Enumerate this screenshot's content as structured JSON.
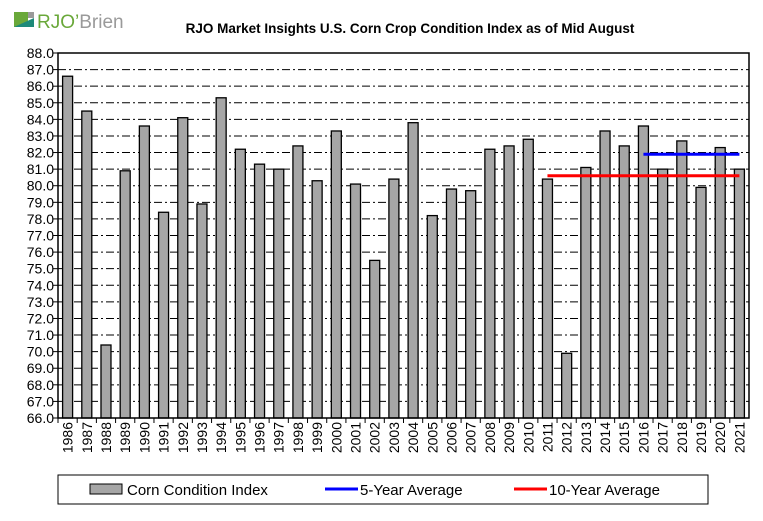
{
  "logo": {
    "text": "RJO'Brien",
    "colors": {
      "green": "#6aa83a",
      "teal": "#1d8a7a",
      "gray": "#9a9a9a"
    }
  },
  "chart_data": {
    "type": "bar",
    "title": "RJO Market Insights U.S. Corn Crop Condition Index as of Mid August",
    "xlabel": "",
    "ylabel": "",
    "ylim": [
      66,
      88
    ],
    "ytick_step": 1,
    "grid": true,
    "legend_position": "bottom",
    "categories": [
      "1986",
      "1987",
      "1988",
      "1989",
      "1990",
      "1991",
      "1992",
      "1993",
      "1994",
      "1995",
      "1996",
      "1997",
      "1998",
      "1999",
      "2000",
      "2001",
      "2002",
      "2003",
      "2004",
      "2005",
      "2006",
      "2007",
      "2008",
      "2009",
      "2010",
      "2011",
      "2012",
      "2013",
      "2014",
      "2015",
      "2016",
      "2017",
      "2018",
      "2019",
      "2020",
      "2021"
    ],
    "series": [
      {
        "name": "Corn Condition Index",
        "type": "bar",
        "color": "#a6a6a6",
        "values": [
          86.6,
          84.5,
          70.4,
          80.9,
          83.6,
          78.4,
          84.1,
          78.9,
          85.3,
          82.2,
          81.3,
          81.0,
          82.4,
          80.3,
          83.3,
          80.1,
          75.5,
          80.4,
          83.8,
          78.2,
          79.8,
          79.7,
          82.2,
          82.4,
          82.8,
          80.4,
          69.9,
          81.1,
          83.3,
          82.4,
          83.6,
          81.0,
          82.7,
          79.9,
          82.3,
          81.0
        ]
      },
      {
        "name": "5-Year Average",
        "type": "line",
        "color": "#0000ff",
        "value": 81.9,
        "from": "2016",
        "to": "2021"
      },
      {
        "name": "10-Year Average",
        "type": "line",
        "color": "#ff0000",
        "value": 80.6,
        "from": "2011",
        "to": "2021"
      }
    ]
  }
}
